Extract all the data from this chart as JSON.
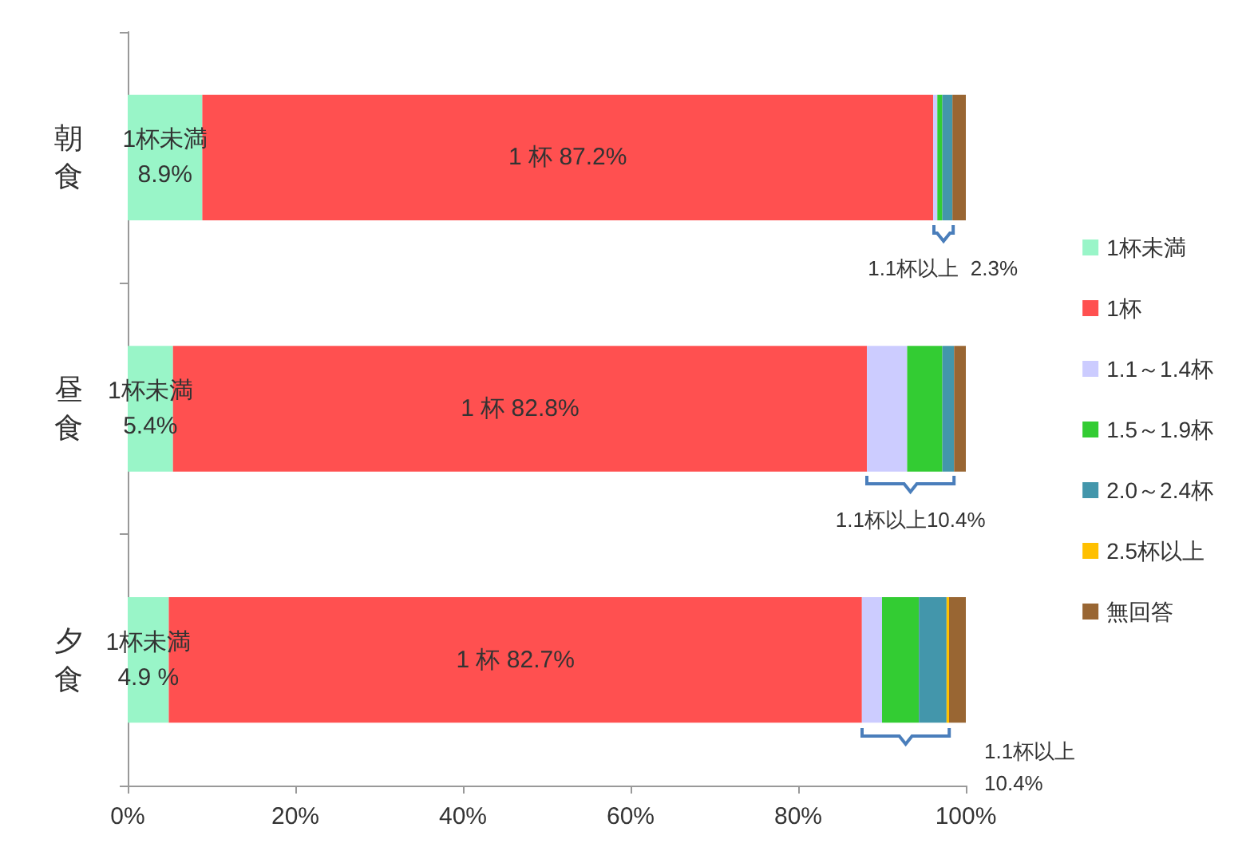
{
  "chart_data": {
    "type": "bar",
    "orientation": "horizontal",
    "stacked": true,
    "categories": [
      "朝食",
      "昼食",
      "夕食"
    ],
    "series": [
      {
        "name": "1杯未満",
        "color": "#99f5c8",
        "values": [
          8.9,
          5.4,
          4.9
        ],
        "value_labels": [
          "1杯未満\n8.9%",
          "1杯未満\n5.4%",
          "1杯未満\n4.9 %"
        ]
      },
      {
        "name": "1杯",
        "color": "#ff5050",
        "values": [
          87.2,
          82.8,
          82.7
        ],
        "value_labels": [
          "1 杯 87.2%",
          "1 杯 82.8%",
          "1 杯 82.7%"
        ]
      },
      {
        "name": "1.1～1.4杯",
        "color": "#ccccff",
        "values": [
          0.5,
          4.8,
          2.4
        ]
      },
      {
        "name": "1.5～1.9杯",
        "color": "#33cc33",
        "values": [
          0.6,
          4.2,
          4.4
        ]
      },
      {
        "name": "2.0～2.4杯",
        "color": "#4396ab",
        "values": [
          1.2,
          1.4,
          3.3
        ]
      },
      {
        "name": "2.5杯以上",
        "color": "#ffc000",
        "values": [
          0,
          0,
          0.3
        ]
      },
      {
        "name": "無回答",
        "color": "#996633",
        "values": [
          1.6,
          1.4,
          2.0
        ]
      }
    ],
    "xlim": [
      0,
      100
    ],
    "xticks": [
      {
        "value": 0,
        "label": "0%"
      },
      {
        "value": 20,
        "label": "20%"
      },
      {
        "value": 40,
        "label": "40%"
      },
      {
        "value": 60,
        "label": "60%"
      },
      {
        "value": 80,
        "label": "80%"
      },
      {
        "value": 100,
        "label": "100%"
      }
    ],
    "grid": false,
    "legend": "right",
    "annotations": [
      "1.1杯以上  2.3%",
      "1.1杯以上10.4%",
      "1.1杯以上\n10.4%"
    ]
  }
}
